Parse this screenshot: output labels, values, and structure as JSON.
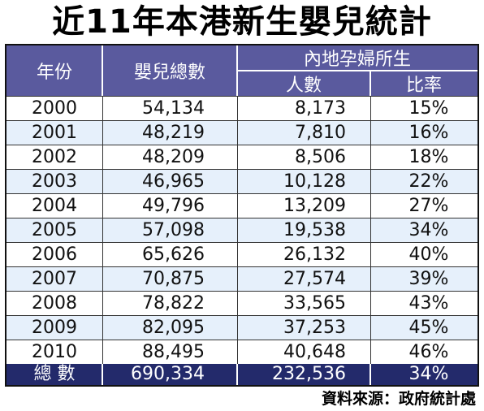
{
  "title": "近11年本港新生嬰兒統計",
  "source": "資料來源：政府統計處",
  "chart_data": {
    "type": "table",
    "title": "近11年本港新生嬰兒統計",
    "headers": {
      "year": "年份",
      "births": "嬰兒總數",
      "mainland_group": "內地孕婦所生",
      "mainland_count": "人數",
      "mainland_ratio": "比率"
    },
    "rows": [
      {
        "year": "2000",
        "births": "54,134",
        "mainland_count": "8,173",
        "mainland_ratio": "15%"
      },
      {
        "year": "2001",
        "births": "48,219",
        "mainland_count": "7,810",
        "mainland_ratio": "16%"
      },
      {
        "year": "2002",
        "births": "48,209",
        "mainland_count": "8,506",
        "mainland_ratio": "18%"
      },
      {
        "year": "2003",
        "births": "46,965",
        "mainland_count": "10,128",
        "mainland_ratio": "22%"
      },
      {
        "year": "2004",
        "births": "49,796",
        "mainland_count": "13,209",
        "mainland_ratio": "27%"
      },
      {
        "year": "2005",
        "births": "57,098",
        "mainland_count": "19,538",
        "mainland_ratio": "34%"
      },
      {
        "year": "2006",
        "births": "65,626",
        "mainland_count": "26,132",
        "mainland_ratio": "40%"
      },
      {
        "year": "2007",
        "births": "70,875",
        "mainland_count": "27,574",
        "mainland_ratio": "39%"
      },
      {
        "year": "2008",
        "births": "78,822",
        "mainland_count": "33,565",
        "mainland_ratio": "43%"
      },
      {
        "year": "2009",
        "births": "82,095",
        "mainland_count": "37,253",
        "mainland_ratio": "45%"
      },
      {
        "year": "2010",
        "births": "88,495",
        "mainland_count": "40,648",
        "mainland_ratio": "46%"
      }
    ],
    "total": {
      "label": "總 數",
      "births": "690,334",
      "mainland_count": "232,536",
      "mainland_ratio": "34%"
    }
  },
  "colors": {
    "header": "#5a5a9e",
    "row_alt": "#e6f0fb",
    "total": "#232a6b"
  }
}
